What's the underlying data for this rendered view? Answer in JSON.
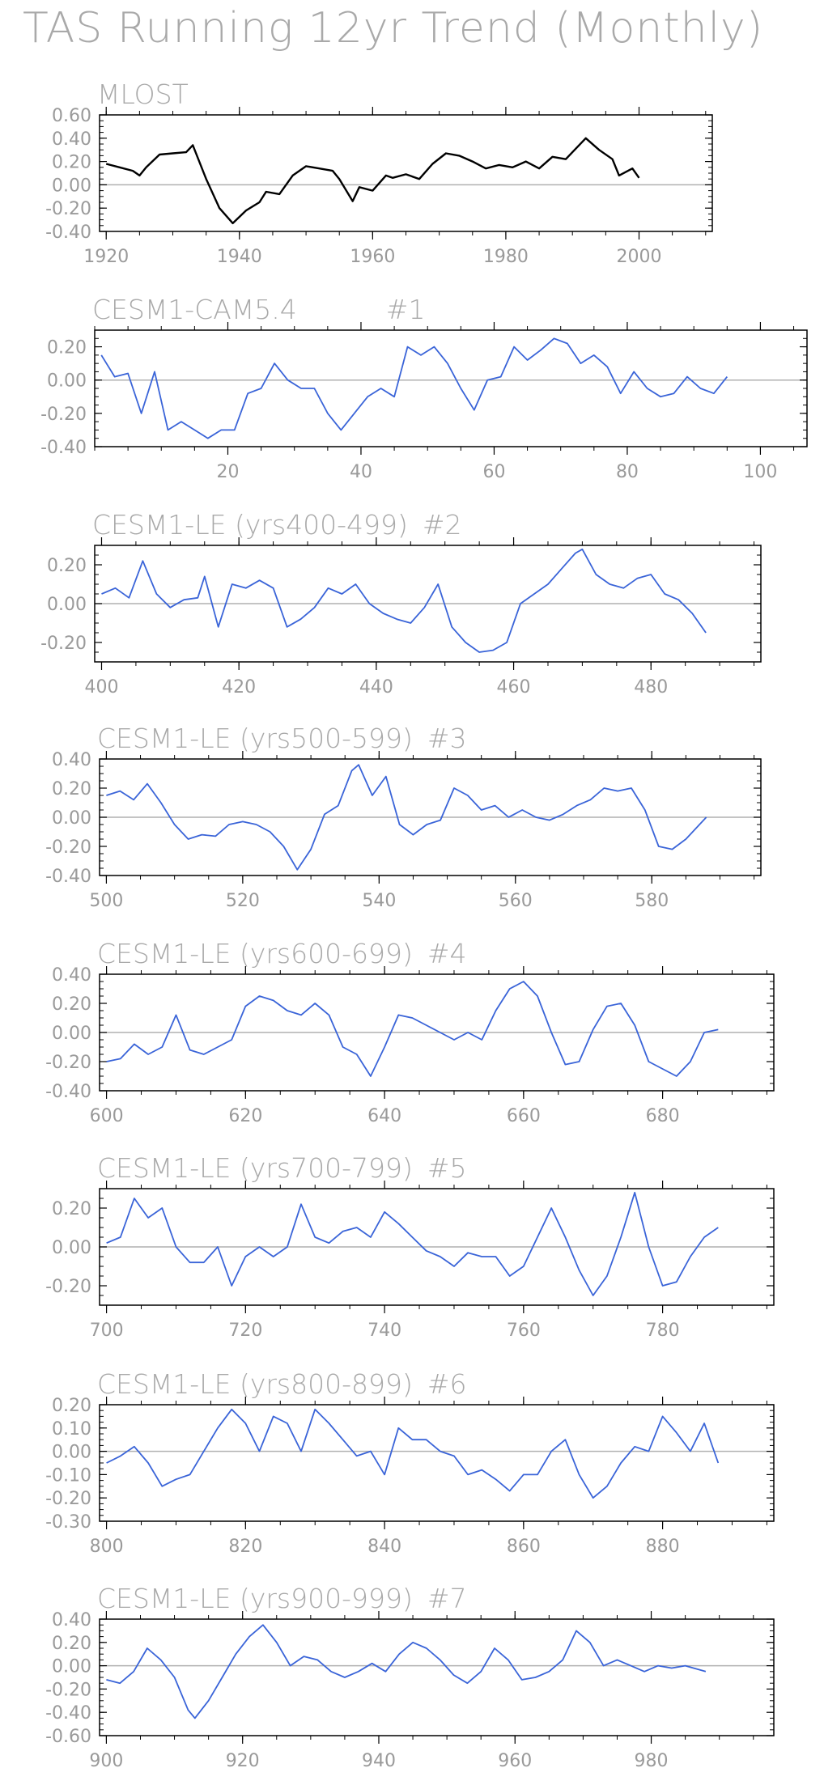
{
  "figure": {
    "title": "TAS Running 12yr Trend (Monthly)"
  },
  "colors": {
    "observed": "#000000",
    "model": "#3a64d8",
    "zero_line": "#b0b0b0",
    "frame": "#000000"
  },
  "chart_data": [
    {
      "type": "line",
      "title": "MLOST",
      "title_suffix": "",
      "line_color": "#000000",
      "xlim": [
        1919,
        2011
      ],
      "ylim": [
        -0.4,
        0.6
      ],
      "xticks": [
        1920,
        1940,
        1960,
        1980,
        2000
      ],
      "xtick_labels": [
        "1920",
        "1940",
        "1960",
        "1980",
        "2000"
      ],
      "yticks": [
        -0.4,
        -0.2,
        0.0,
        0.2,
        0.4,
        0.6
      ],
      "ytick_labels": [
        "-0.40",
        "-0.20",
        "0.00",
        "0.20",
        "0.40",
        "0.60"
      ],
      "series": [
        {
          "x": [
            1920,
            1922,
            1924,
            1925,
            1926,
            1928,
            1930,
            1932,
            1933,
            1935,
            1937,
            1939,
            1941,
            1943,
            1944,
            1946,
            1948,
            1950,
            1952,
            1954,
            1955,
            1957,
            1958,
            1960,
            1962,
            1963,
            1965,
            1967,
            1969,
            1971,
            1973,
            1975,
            1977,
            1979,
            1981,
            1983,
            1985,
            1987,
            1989,
            1990,
            1992,
            1994,
            1996,
            1997,
            1999,
            2000
          ],
          "y": [
            0.18,
            0.15,
            0.12,
            0.08,
            0.15,
            0.26,
            0.27,
            0.28,
            0.34,
            0.05,
            -0.2,
            -0.33,
            -0.22,
            -0.15,
            -0.06,
            -0.08,
            0.08,
            0.16,
            0.14,
            0.12,
            0.05,
            -0.14,
            -0.02,
            -0.05,
            0.08,
            0.06,
            0.09,
            0.05,
            0.18,
            0.27,
            0.25,
            0.2,
            0.14,
            0.17,
            0.15,
            0.2,
            0.14,
            0.24,
            0.22,
            0.28,
            0.4,
            0.3,
            0.22,
            0.08,
            0.14,
            0.06
          ]
        }
      ]
    },
    {
      "type": "line",
      "title": "CESM1-CAM5.4",
      "title_suffix": "#1",
      "line_color": "#3a64d8",
      "xlim": [
        0,
        107
      ],
      "ylim": [
        -0.4,
        0.3
      ],
      "xticks": [
        20,
        40,
        60,
        80,
        100
      ],
      "xtick_labels": [
        "20",
        "40",
        "60",
        "80",
        "100"
      ],
      "yticks": [
        -0.4,
        -0.2,
        0.0,
        0.2
      ],
      "ytick_labels": [
        "-0.40",
        "-0.20",
        "0.00",
        "0.20"
      ],
      "series": [
        {
          "x": [
            1,
            3,
            5,
            7,
            9,
            11,
            13,
            15,
            17,
            19,
            21,
            23,
            25,
            27,
            29,
            31,
            33,
            35,
            37,
            39,
            41,
            43,
            45,
            47,
            49,
            51,
            53,
            55,
            57,
            59,
            61,
            63,
            65,
            67,
            69,
            71,
            73,
            75,
            77,
            79,
            81,
            83,
            85,
            87,
            89,
            91,
            93,
            95
          ],
          "y": [
            0.15,
            0.02,
            0.04,
            -0.2,
            0.05,
            -0.3,
            -0.25,
            -0.3,
            -0.35,
            -0.3,
            -0.3,
            -0.08,
            -0.05,
            0.1,
            0.0,
            -0.05,
            -0.05,
            -0.2,
            -0.3,
            -0.2,
            -0.1,
            -0.05,
            -0.1,
            0.2,
            0.15,
            0.2,
            0.1,
            -0.05,
            -0.18,
            0.0,
            0.02,
            0.2,
            0.12,
            0.18,
            0.25,
            0.22,
            0.1,
            0.15,
            0.08,
            -0.08,
            0.05,
            -0.05,
            -0.1,
            -0.08,
            0.02,
            -0.05,
            -0.08,
            0.02
          ]
        }
      ]
    },
    {
      "type": "line",
      "title": "CESM1-LE (yrs400-499)",
      "title_suffix": "#2",
      "line_color": "#3a64d8",
      "xlim": [
        399,
        496
      ],
      "ylim": [
        -0.3,
        0.3
      ],
      "xticks": [
        400,
        420,
        440,
        460,
        480
      ],
      "xtick_labels": [
        "400",
        "420",
        "440",
        "460",
        "480"
      ],
      "yticks": [
        -0.2,
        0.0,
        0.2
      ],
      "ytick_labels": [
        "-0.20",
        "0.00",
        "0.20"
      ],
      "series": [
        {
          "x": [
            400,
            402,
            404,
            406,
            408,
            410,
            412,
            414,
            415,
            417,
            419,
            421,
            423,
            425,
            427,
            429,
            431,
            433,
            435,
            437,
            439,
            441,
            443,
            445,
            447,
            449,
            451,
            453,
            455,
            457,
            459,
            461,
            463,
            465,
            467,
            469,
            470,
            472,
            474,
            476,
            478,
            480,
            482,
            484,
            486,
            488
          ],
          "y": [
            0.05,
            0.08,
            0.03,
            0.22,
            0.05,
            -0.02,
            0.02,
            0.03,
            0.14,
            -0.12,
            0.1,
            0.08,
            0.12,
            0.08,
            -0.12,
            -0.08,
            -0.02,
            0.08,
            0.05,
            0.1,
            0.0,
            -0.05,
            -0.08,
            -0.1,
            -0.02,
            0.1,
            -0.12,
            -0.2,
            -0.25,
            -0.24,
            -0.2,
            0.0,
            0.05,
            0.1,
            0.18,
            0.26,
            0.28,
            0.15,
            0.1,
            0.08,
            0.13,
            0.15,
            0.05,
            0.02,
            -0.05,
            -0.15
          ]
        }
      ]
    },
    {
      "type": "line",
      "title": "CESM1-LE (yrs500-599)",
      "title_suffix": "#3",
      "line_color": "#3a64d8",
      "xlim": [
        499,
        596
      ],
      "ylim": [
        -0.4,
        0.4
      ],
      "xticks": [
        500,
        520,
        540,
        560,
        580
      ],
      "xtick_labels": [
        "500",
        "520",
        "540",
        "560",
        "580"
      ],
      "yticks": [
        -0.4,
        -0.2,
        0.0,
        0.2,
        0.4
      ],
      "ytick_labels": [
        "-0.40",
        "-0.20",
        "0.00",
        "0.20",
        "0.40"
      ],
      "series": [
        {
          "x": [
            500,
            502,
            504,
            506,
            508,
            510,
            512,
            514,
            516,
            518,
            520,
            522,
            524,
            526,
            528,
            530,
            532,
            534,
            536,
            537,
            539,
            541,
            543,
            545,
            547,
            549,
            551,
            553,
            555,
            557,
            559,
            561,
            563,
            565,
            567,
            569,
            571,
            573,
            575,
            577,
            579,
            581,
            583,
            585,
            588
          ],
          "y": [
            0.15,
            0.18,
            0.12,
            0.23,
            0.1,
            -0.05,
            -0.15,
            -0.12,
            -0.13,
            -0.05,
            -0.03,
            -0.05,
            -0.1,
            -0.2,
            -0.36,
            -0.22,
            0.02,
            0.08,
            0.32,
            0.36,
            0.15,
            0.28,
            -0.05,
            -0.12,
            -0.05,
            -0.02,
            0.2,
            0.15,
            0.05,
            0.08,
            0.0,
            0.05,
            0.0,
            -0.02,
            0.02,
            0.08,
            0.12,
            0.2,
            0.18,
            0.2,
            0.05,
            -0.2,
            -0.22,
            -0.15,
            0.0
          ]
        }
      ]
    },
    {
      "type": "line",
      "title": "CESM1-LE (yrs600-699)",
      "title_suffix": "#4",
      "line_color": "#3a64d8",
      "xlim": [
        599,
        696
      ],
      "ylim": [
        -0.4,
        0.4
      ],
      "xticks": [
        600,
        620,
        640,
        660,
        680
      ],
      "xtick_labels": [
        "600",
        "620",
        "640",
        "660",
        "680"
      ],
      "yticks": [
        -0.4,
        -0.2,
        0.0,
        0.2,
        0.4
      ],
      "ytick_labels": [
        "-0.40",
        "-0.20",
        "0.00",
        "0.20",
        "0.40"
      ],
      "series": [
        {
          "x": [
            600,
            602,
            604,
            606,
            608,
            610,
            612,
            614,
            616,
            618,
            620,
            622,
            624,
            626,
            628,
            630,
            632,
            634,
            636,
            638,
            640,
            642,
            644,
            646,
            648,
            650,
            652,
            654,
            656,
            658,
            660,
            662,
            664,
            666,
            668,
            670,
            672,
            674,
            676,
            678,
            680,
            682,
            684,
            686,
            688
          ],
          "y": [
            -0.2,
            -0.18,
            -0.08,
            -0.15,
            -0.1,
            0.12,
            -0.12,
            -0.15,
            -0.1,
            -0.05,
            0.18,
            0.25,
            0.22,
            0.15,
            0.12,
            0.2,
            0.12,
            -0.1,
            -0.15,
            -0.3,
            -0.1,
            0.12,
            0.1,
            0.05,
            0.0,
            -0.05,
            0.0,
            -0.05,
            0.15,
            0.3,
            0.35,
            0.25,
            0.0,
            -0.22,
            -0.2,
            0.02,
            0.18,
            0.2,
            0.05,
            -0.2,
            -0.25,
            -0.3,
            -0.2,
            0.0,
            0.02
          ]
        }
      ]
    },
    {
      "type": "line",
      "title": "CESM1-LE (yrs700-799)",
      "title_suffix": "#5",
      "line_color": "#3a64d8",
      "xlim": [
        699,
        796
      ],
      "ylim": [
        -0.3,
        0.3
      ],
      "xticks": [
        700,
        720,
        740,
        760,
        780
      ],
      "xtick_labels": [
        "700",
        "720",
        "740",
        "760",
        "780"
      ],
      "yticks": [
        -0.2,
        0.0,
        0.2
      ],
      "ytick_labels": [
        "-0.20",
        "0.00",
        "0.20"
      ],
      "series": [
        {
          "x": [
            700,
            702,
            704,
            706,
            708,
            710,
            712,
            714,
            716,
            718,
            720,
            722,
            724,
            726,
            728,
            730,
            732,
            734,
            736,
            738,
            740,
            742,
            744,
            746,
            748,
            750,
            752,
            754,
            756,
            758,
            760,
            762,
            764,
            766,
            768,
            770,
            772,
            774,
            776,
            778,
            780,
            782,
            784,
            786,
            788
          ],
          "y": [
            0.02,
            0.05,
            0.25,
            0.15,
            0.2,
            0.0,
            -0.08,
            -0.08,
            0.0,
            -0.2,
            -0.05,
            0.0,
            -0.05,
            0.0,
            0.22,
            0.05,
            0.02,
            0.08,
            0.1,
            0.05,
            0.18,
            0.12,
            0.05,
            -0.02,
            -0.05,
            -0.1,
            -0.03,
            -0.05,
            -0.05,
            -0.15,
            -0.1,
            0.05,
            0.2,
            0.05,
            -0.12,
            -0.25,
            -0.15,
            0.05,
            0.28,
            0.0,
            -0.2,
            -0.18,
            -0.05,
            0.05,
            0.1
          ]
        }
      ]
    },
    {
      "type": "line",
      "title": "CESM1-LE (yrs800-899)",
      "title_suffix": "#6",
      "line_color": "#3a64d8",
      "xlim": [
        799,
        896
      ],
      "ylim": [
        -0.3,
        0.2
      ],
      "xticks": [
        800,
        820,
        840,
        860,
        880
      ],
      "xtick_labels": [
        "800",
        "820",
        "840",
        "860",
        "880"
      ],
      "yticks": [
        -0.3,
        -0.2,
        -0.1,
        0.0,
        0.1,
        0.2
      ],
      "ytick_labels": [
        "-0.30",
        "-0.20",
        "-0.10",
        "0.00",
        "0.10",
        "0.20"
      ],
      "series": [
        {
          "x": [
            800,
            802,
            804,
            806,
            808,
            810,
            812,
            814,
            816,
            818,
            820,
            822,
            824,
            826,
            828,
            830,
            832,
            834,
            836,
            838,
            840,
            842,
            844,
            846,
            848,
            850,
            852,
            854,
            856,
            858,
            860,
            862,
            864,
            866,
            868,
            870,
            872,
            874,
            876,
            878,
            880,
            882,
            884,
            886,
            888
          ],
          "y": [
            -0.05,
            -0.02,
            0.02,
            -0.05,
            -0.15,
            -0.12,
            -0.1,
            0.0,
            0.1,
            0.18,
            0.12,
            0.0,
            0.15,
            0.12,
            0.0,
            0.18,
            0.12,
            0.05,
            -0.02,
            0.0,
            -0.1,
            0.1,
            0.05,
            0.05,
            0.0,
            -0.02,
            -0.1,
            -0.08,
            -0.12,
            -0.17,
            -0.1,
            -0.1,
            0.0,
            0.05,
            -0.1,
            -0.2,
            -0.15,
            -0.05,
            0.02,
            0.0,
            0.15,
            0.08,
            0.0,
            0.12,
            -0.05
          ]
        }
      ]
    },
    {
      "type": "line",
      "title": "CESM1-LE (yrs900-999)",
      "title_suffix": "#7",
      "line_color": "#3a64d8",
      "xlim": [
        899,
        998
      ],
      "ylim": [
        -0.6,
        0.4
      ],
      "xticks": [
        900,
        920,
        940,
        960,
        980
      ],
      "xtick_labels": [
        "900",
        "920",
        "940",
        "960",
        "980"
      ],
      "yticks": [
        -0.6,
        -0.4,
        -0.2,
        0.0,
        0.2,
        0.4
      ],
      "ytick_labels": [
        "-0.60",
        "-0.40",
        "-0.20",
        "0.00",
        "0.20",
        "0.40"
      ],
      "series": [
        {
          "x": [
            900,
            902,
            904,
            906,
            908,
            910,
            912,
            913,
            915,
            917,
            919,
            921,
            923,
            925,
            927,
            929,
            931,
            933,
            935,
            937,
            939,
            941,
            943,
            945,
            947,
            949,
            951,
            953,
            955,
            957,
            959,
            961,
            963,
            965,
            967,
            969,
            971,
            973,
            975,
            977,
            979,
            981,
            983,
            985,
            988
          ],
          "y": [
            -0.12,
            -0.15,
            -0.05,
            0.15,
            0.05,
            -0.1,
            -0.38,
            -0.45,
            -0.3,
            -0.1,
            0.1,
            0.25,
            0.35,
            0.2,
            0.0,
            0.08,
            0.05,
            -0.05,
            -0.1,
            -0.05,
            0.02,
            -0.05,
            0.1,
            0.2,
            0.15,
            0.05,
            -0.08,
            -0.15,
            -0.05,
            0.15,
            0.05,
            -0.12,
            -0.1,
            -0.05,
            0.05,
            0.3,
            0.2,
            0.0,
            0.05,
            0.0,
            -0.05,
            0.0,
            -0.02,
            0.0,
            -0.05
          ]
        }
      ]
    }
  ]
}
